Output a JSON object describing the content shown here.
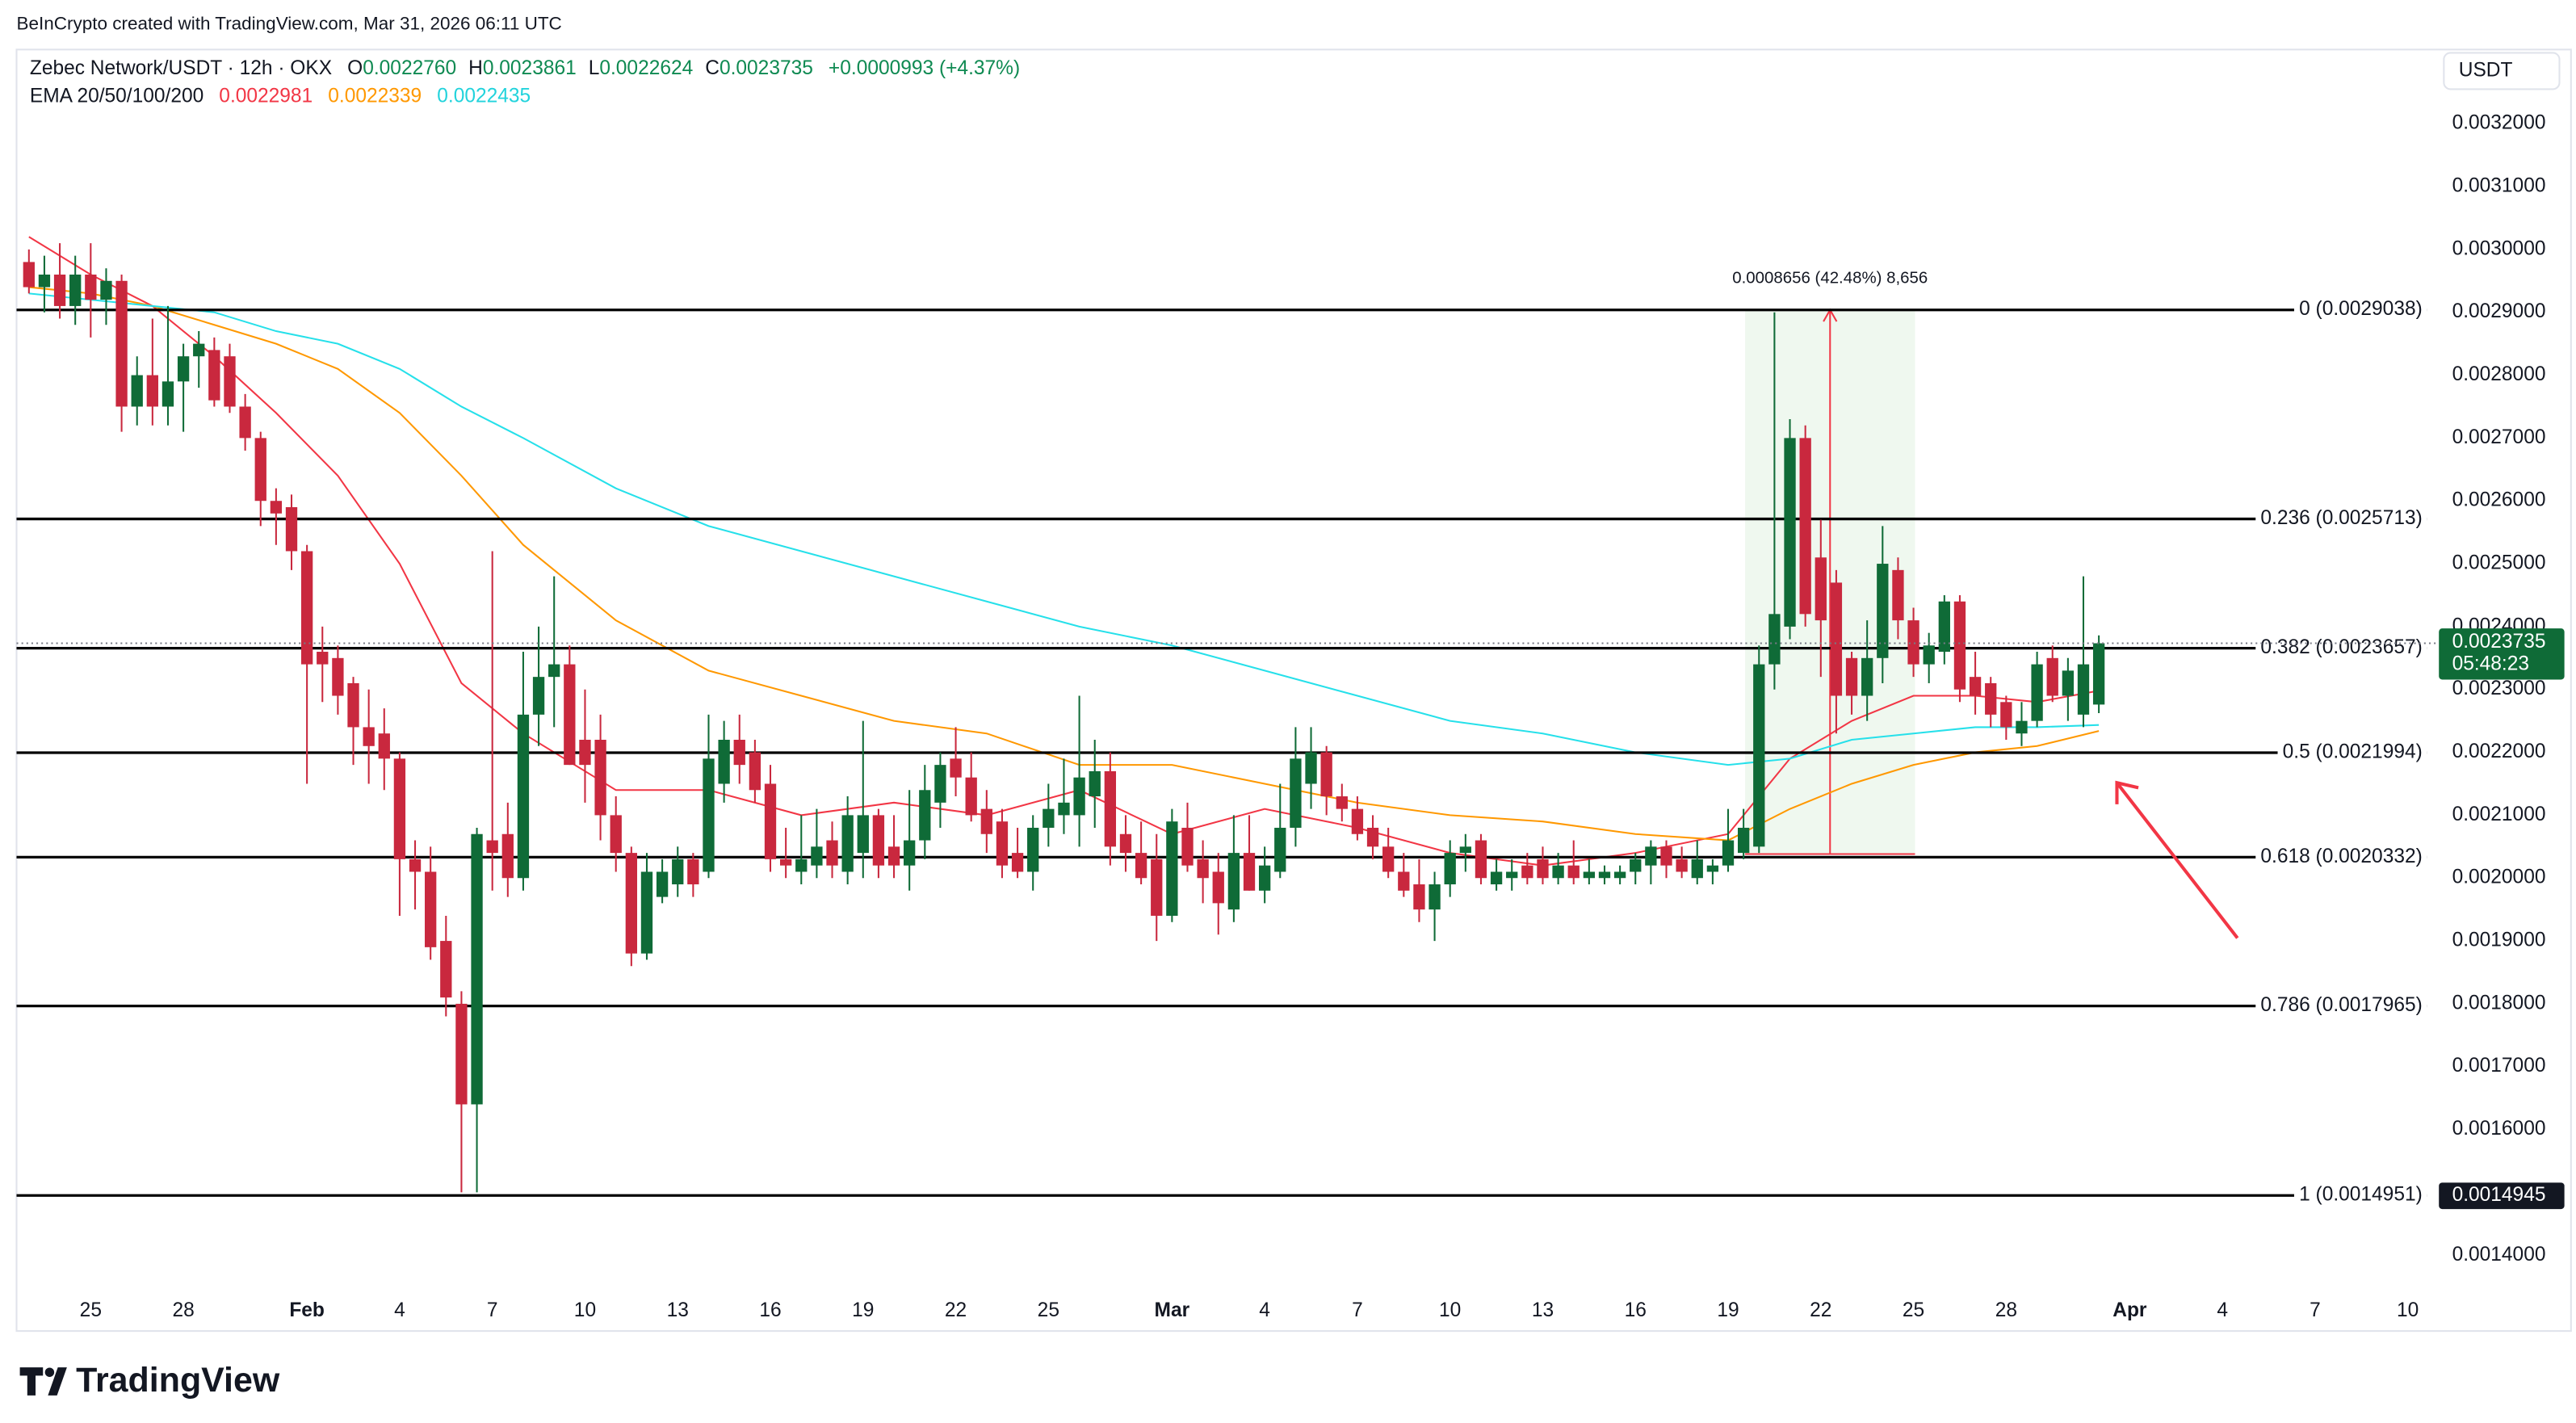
{
  "header": {
    "credit": "BeInCrypto created with TradingView.com, Mar 31, 2026 06:11 UTC",
    "symbol": "Zebec Network/USDT · 12h · OKX",
    "ohlc": [
      {
        "label": "O",
        "value": "0.0022760"
      },
      {
        "label": "H",
        "value": "0.0023861"
      },
      {
        "label": "L",
        "value": "0.0022624"
      },
      {
        "label": "C",
        "value": "0.0023735"
      }
    ],
    "change": "+0.0000993 (+4.37%)",
    "indicator": "EMA 20/50/100/200",
    "currency": "USDT",
    "countdown": "05:48:23",
    "brand": "TradingView"
  },
  "chart_data": {
    "type": "candlestick",
    "grid": false,
    "xlim": [
      22.6,
      100.9
    ],
    "xticks": [
      25,
      28,
      {
        "value": 32,
        "label": "Feb"
      },
      {
        "value": 35,
        "label": "4"
      },
      {
        "value": 38,
        "label": "7"
      },
      {
        "value": 41,
        "label": "10"
      },
      {
        "value": 44,
        "label": "13"
      },
      {
        "value": 47,
        "label": "16"
      },
      {
        "value": 50,
        "label": "19"
      },
      {
        "value": 53,
        "label": "22"
      },
      {
        "value": 56,
        "label": "25"
      },
      {
        "value": 60,
        "label": "Mar"
      },
      {
        "value": 63,
        "label": "4"
      },
      {
        "value": 66,
        "label": "7"
      },
      {
        "value": 69,
        "label": "10"
      },
      {
        "value": 72,
        "label": "13"
      },
      {
        "value": 75,
        "label": "16"
      },
      {
        "value": 78,
        "label": "19"
      },
      {
        "value": 81,
        "label": "22"
      },
      {
        "value": 84,
        "label": "25"
      },
      {
        "value": 87,
        "label": "28"
      },
      {
        "value": 91,
        "label": "Apr"
      },
      {
        "value": 94,
        "label": "4"
      },
      {
        "value": 97,
        "label": "7"
      },
      {
        "value": 100,
        "label": "10"
      }
    ],
    "ylim": [
      0.001353,
      0.003318
    ],
    "yticks": [
      {
        "value": 0.0014,
        "label": "0.0014000"
      },
      {
        "value": 0.0015,
        "label": "0.0015000"
      },
      {
        "value": 0.0016,
        "label": "0.0016000"
      },
      {
        "value": 0.0017,
        "label": "0.0017000"
      },
      {
        "value": 0.0018,
        "label": "0.0018000"
      },
      {
        "value": 0.0019,
        "label": "0.0019000"
      },
      {
        "value": 0.002,
        "label": "0.0020000"
      },
      {
        "value": 0.0021,
        "label": "0.0021000"
      },
      {
        "value": 0.0022,
        "label": "0.0022000"
      },
      {
        "value": 0.0023,
        "label": "0.0023000"
      },
      {
        "value": 0.0024,
        "label": "0.0024000"
      },
      {
        "value": 0.0025,
        "label": "0.0025000"
      },
      {
        "value": 0.0026,
        "label": "0.0026000"
      },
      {
        "value": 0.0027,
        "label": "0.0027000"
      },
      {
        "value": 0.0028,
        "label": "0.0028000"
      },
      {
        "value": 0.0029,
        "label": "0.0029000"
      },
      {
        "value": 0.003,
        "label": "0.0030000"
      },
      {
        "value": 0.0031,
        "label": "0.0031000"
      },
      {
        "value": 0.0032,
        "label": "0.0032000"
      }
    ],
    "up_color": "#0f6b37",
    "down_color": "#c9283e",
    "x": [
      23,
      23.5,
      24,
      24.5,
      25,
      25.5,
      26,
      26.5,
      27,
      27.5,
      28,
      28.5,
      29,
      29.5,
      30,
      30.5,
      31,
      31.5,
      32,
      32.5,
      33,
      33.5,
      34,
      34.5,
      35,
      35.5,
      36,
      36.5,
      37,
      37.5,
      38,
      38.5,
      39,
      39.5,
      40,
      40.5,
      41,
      41.5,
      42,
      42.5,
      43,
      43.5,
      44,
      44.5,
      45,
      45.5,
      46,
      46.5,
      47,
      47.5,
      48,
      48.5,
      49,
      49.5,
      50,
      50.5,
      51,
      51.5,
      52,
      52.5,
      53,
      53.5,
      54,
      54.5,
      55,
      55.5,
      56,
      56.5,
      57,
      57.5,
      58,
      58.5,
      59,
      59.5,
      60,
      60.5,
      61,
      61.5,
      62,
      62.5,
      63,
      63.5,
      64,
      64.5,
      65,
      65.5,
      66,
      66.5,
      67,
      67.5,
      68,
      68.5,
      69,
      69.5,
      70,
      70.5,
      71,
      71.5,
      72,
      72.5,
      73,
      73.5,
      74,
      74.5,
      75,
      75.5,
      76,
      76.5,
      77,
      77.5,
      78,
      78.5,
      79,
      79.5,
      80,
      80.5,
      81,
      81.5,
      82,
      82.5,
      83,
      83.5,
      84,
      84.5,
      85,
      85.5,
      86,
      86.5,
      87,
      87.5,
      88,
      88.5,
      89,
      89.5,
      90
    ],
    "open": [
      0.00298,
      0.00294,
      0.00296,
      0.00291,
      0.00296,
      0.00292,
      0.00295,
      0.00275,
      0.0028,
      0.00275,
      0.00279,
      0.00283,
      0.00284,
      0.00283,
      0.00275,
      0.0027,
      0.0026,
      0.00259,
      0.00252,
      0.00236,
      0.00235,
      0.00231,
      0.00224,
      0.00223,
      0.00219,
      0.00203,
      0.00201,
      0.0019,
      0.0018,
      0.00164,
      0.00206,
      0.00207,
      0.002,
      0.00226,
      0.00232,
      0.00234,
      0.00222,
      0.00222,
      0.0021,
      0.00204,
      0.00188,
      0.00197,
      0.00199,
      0.00203,
      0.00201,
      0.00215,
      0.00222,
      0.0022,
      0.00215,
      0.00203,
      0.00201,
      0.00202,
      0.00206,
      0.00201,
      0.00204,
      0.0021,
      0.00205,
      0.00202,
      0.00206,
      0.00212,
      0.00219,
      0.00216,
      0.00211,
      0.00209,
      0.00204,
      0.00201,
      0.00208,
      0.0021,
      0.0021,
      0.00213,
      0.00217,
      0.00207,
      0.00204,
      0.00203,
      0.00194,
      0.00208,
      0.00203,
      0.00201,
      0.00195,
      0.00204,
      0.00198,
      0.00201,
      0.00208,
      0.00215,
      0.0022,
      0.00213,
      0.00211,
      0.00208,
      0.00205,
      0.00201,
      0.00199,
      0.00195,
      0.00199,
      0.00204,
      0.00206,
      0.00199,
      0.002,
      0.00202,
      0.00203,
      0.002,
      0.00202,
      0.002,
      0.002,
      0.002,
      0.00201,
      0.00202,
      0.00205,
      0.00203,
      0.002,
      0.00201,
      0.00202,
      0.00204,
      0.00205,
      0.00234,
      0.0024,
      0.0027,
      0.00251,
      0.00247,
      0.00235,
      0.00229,
      0.00235,
      0.00249,
      0.00241,
      0.00234,
      0.00236,
      0.00244,
      0.00232,
      0.00231,
      0.00228,
      0.00223,
      0.00225,
      0.00235,
      0.00229,
      0.00226,
      0.002276
    ],
    "high": [
      0.003,
      0.00299,
      0.00301,
      0.00299,
      0.00301,
      0.00297,
      0.00296,
      0.00283,
      0.00289,
      0.00291,
      0.00285,
      0.00287,
      0.00286,
      0.00285,
      0.00277,
      0.00271,
      0.00262,
      0.00261,
      0.00253,
      0.0024,
      0.00237,
      0.00232,
      0.0023,
      0.00227,
      0.0022,
      0.00206,
      0.00205,
      0.00194,
      0.00182,
      0.00208,
      0.00252,
      0.00212,
      0.00236,
      0.0024,
      0.00248,
      0.00237,
      0.0023,
      0.00226,
      0.00213,
      0.00205,
      0.00204,
      0.00203,
      0.00205,
      0.00204,
      0.00226,
      0.00225,
      0.00226,
      0.00222,
      0.00218,
      0.00208,
      0.0021,
      0.00211,
      0.00209,
      0.00213,
      0.00225,
      0.00211,
      0.0021,
      0.00214,
      0.00218,
      0.0022,
      0.00224,
      0.0022,
      0.00214,
      0.00211,
      0.00208,
      0.0021,
      0.00215,
      0.00219,
      0.00229,
      0.00222,
      0.0022,
      0.0021,
      0.00209,
      0.00207,
      0.00211,
      0.00212,
      0.00206,
      0.00204,
      0.0021,
      0.0021,
      0.00205,
      0.00215,
      0.00224,
      0.00224,
      0.00221,
      0.00215,
      0.00213,
      0.0021,
      0.00208,
      0.00204,
      0.00203,
      0.00201,
      0.00206,
      0.00207,
      0.00207,
      0.00203,
      0.00203,
      0.00204,
      0.00205,
      0.00204,
      0.00206,
      0.00203,
      0.00202,
      0.00202,
      0.00204,
      0.00206,
      0.00206,
      0.00205,
      0.00206,
      0.00203,
      0.00211,
      0.00211,
      0.00237,
      0.0029,
      0.00273,
      0.00272,
      0.00257,
      0.00249,
      0.00236,
      0.00241,
      0.00256,
      0.00251,
      0.00243,
      0.00239,
      0.00245,
      0.00245,
      0.00236,
      0.00232,
      0.00229,
      0.00228,
      0.00236,
      0.00237,
      0.00235,
      0.00248,
      0.0023861
    ],
    "low": [
      0.00293,
      0.0029,
      0.00289,
      0.00288,
      0.00286,
      0.00288,
      0.00271,
      0.00272,
      0.00272,
      0.00272,
      0.00271,
      0.00278,
      0.00275,
      0.00274,
      0.00268,
      0.00256,
      0.00253,
      0.00249,
      0.00215,
      0.00228,
      0.00226,
      0.00218,
      0.00215,
      0.00214,
      0.00194,
      0.00195,
      0.00187,
      0.00178,
      0.0015,
      0.0015,
      0.00198,
      0.00197,
      0.00198,
      0.00221,
      0.00224,
      0.00218,
      0.00212,
      0.00206,
      0.00201,
      0.00186,
      0.00187,
      0.00196,
      0.00197,
      0.00197,
      0.002,
      0.00212,
      0.00215,
      0.00212,
      0.00201,
      0.002,
      0.00199,
      0.002,
      0.002,
      0.00199,
      0.002,
      0.002,
      0.002,
      0.00198,
      0.00203,
      0.00208,
      0.00213,
      0.00209,
      0.00204,
      0.002,
      0.002,
      0.00198,
      0.00205,
      0.00207,
      0.00205,
      0.00208,
      0.00202,
      0.00201,
      0.00199,
      0.0019,
      0.00193,
      0.00201,
      0.00196,
      0.00191,
      0.00193,
      0.00198,
      0.00196,
      0.002,
      0.00205,
      0.00211,
      0.0021,
      0.00209,
      0.00206,
      0.00203,
      0.002,
      0.00197,
      0.00193,
      0.0019,
      0.00197,
      0.00201,
      0.00199,
      0.00198,
      0.00198,
      0.00199,
      0.00199,
      0.00199,
      0.00199,
      0.00199,
      0.00199,
      0.00199,
      0.00199,
      0.00199,
      0.002,
      0.002,
      0.00199,
      0.00199,
      0.00201,
      0.00203,
      0.00204,
      0.0023,
      0.00238,
      0.0024,
      0.00232,
      0.00223,
      0.00226,
      0.00225,
      0.00231,
      0.00238,
      0.00232,
      0.00231,
      0.00234,
      0.00228,
      0.00226,
      0.00224,
      0.00222,
      0.00221,
      0.00224,
      0.00228,
      0.00225,
      0.00224,
      0.0022624
    ],
    "close": [
      0.00294,
      0.00296,
      0.00291,
      0.00296,
      0.00292,
      0.00295,
      0.00275,
      0.0028,
      0.00275,
      0.00279,
      0.00283,
      0.00285,
      0.00276,
      0.00275,
      0.0027,
      0.0026,
      0.00258,
      0.00252,
      0.00234,
      0.00234,
      0.00229,
      0.00224,
      0.00221,
      0.00219,
      0.00203,
      0.00201,
      0.00189,
      0.00181,
      0.00164,
      0.00207,
      0.00204,
      0.002,
      0.00226,
      0.00232,
      0.00234,
      0.00218,
      0.00218,
      0.0021,
      0.00204,
      0.00188,
      0.00201,
      0.00201,
      0.00203,
      0.00199,
      0.00219,
      0.00222,
      0.00218,
      0.00214,
      0.00203,
      0.00202,
      0.00203,
      0.00205,
      0.00202,
      0.0021,
      0.0021,
      0.00202,
      0.00202,
      0.00206,
      0.00214,
      0.00218,
      0.00216,
      0.0021,
      0.00207,
      0.00202,
      0.00201,
      0.00208,
      0.00211,
      0.00212,
      0.00216,
      0.00217,
      0.00205,
      0.00204,
      0.002,
      0.00194,
      0.00209,
      0.00202,
      0.002,
      0.00196,
      0.00204,
      0.00198,
      0.00202,
      0.00208,
      0.00219,
      0.0022,
      0.00213,
      0.00211,
      0.00207,
      0.00205,
      0.00201,
      0.00198,
      0.00195,
      0.00199,
      0.00204,
      0.00205,
      0.002,
      0.00201,
      0.00201,
      0.002,
      0.002,
      0.00202,
      0.002,
      0.00201,
      0.00201,
      0.00201,
      0.00203,
      0.00205,
      0.00202,
      0.00201,
      0.00203,
      0.00202,
      0.00206,
      0.00208,
      0.00234,
      0.00242,
      0.0027,
      0.00242,
      0.00241,
      0.00229,
      0.00229,
      0.00235,
      0.0025,
      0.00241,
      0.00234,
      0.00237,
      0.00244,
      0.0023,
      0.00229,
      0.00226,
      0.00224,
      0.00225,
      0.00234,
      0.00229,
      0.00233,
      0.00234,
      0.0023735
    ],
    "series": [
      {
        "color": "#f23645",
        "x": [
          23,
          25,
          27,
          29,
          31,
          33,
          35,
          37,
          39,
          42,
          45,
          48,
          51,
          54,
          57,
          60,
          63,
          66,
          69,
          72,
          75,
          78,
          80,
          82,
          84,
          86,
          88,
          90
        ],
        "values": [
          0.00302,
          0.00296,
          0.00291,
          0.00283,
          0.00274,
          0.00264,
          0.0025,
          0.00231,
          0.00223,
          0.00214,
          0.00214,
          0.0021,
          0.00212,
          0.0021,
          0.00214,
          0.00207,
          0.00211,
          0.00208,
          0.00204,
          0.00202,
          0.00204,
          0.00207,
          0.00219,
          0.00225,
          0.00229,
          0.00229,
          0.00228,
          0.0022981
        ]
      },
      {
        "color": "#ff9800",
        "x": [
          23,
          25,
          27,
          29,
          31,
          33,
          35,
          37,
          39,
          42,
          45,
          48,
          51,
          54,
          57,
          60,
          63,
          66,
          69,
          72,
          75,
          78,
          80,
          82,
          84,
          86,
          88,
          90
        ],
        "values": [
          0.00294,
          0.00293,
          0.00291,
          0.00288,
          0.00285,
          0.00281,
          0.00274,
          0.00264,
          0.00253,
          0.00241,
          0.00233,
          0.00229,
          0.00225,
          0.00223,
          0.00218,
          0.00218,
          0.00215,
          0.00212,
          0.0021,
          0.00209,
          0.00207,
          0.00206,
          0.00211,
          0.00215,
          0.00218,
          0.0022,
          0.00221,
          0.0022339
        ]
      },
      {
        "color": "#26e0ea",
        "x": [
          23,
          25,
          27,
          29,
          31,
          33,
          35,
          37,
          39,
          42,
          45,
          48,
          51,
          54,
          57,
          60,
          63,
          66,
          69,
          72,
          75,
          78,
          80,
          82,
          84,
          86,
          88,
          90
        ],
        "values": [
          0.00293,
          0.00292,
          0.00291,
          0.0029,
          0.00287,
          0.00285,
          0.00281,
          0.00275,
          0.0027,
          0.00262,
          0.00256,
          0.00252,
          0.00248,
          0.00244,
          0.0024,
          0.00237,
          0.00233,
          0.00229,
          0.00225,
          0.00223,
          0.0022,
          0.00218,
          0.00219,
          0.00222,
          0.00223,
          0.00224,
          0.00224,
          0.0022435
        ]
      }
    ],
    "levels": [
      {
        "value": 0.0029038,
        "label": "0 (0.0029038)"
      },
      {
        "value": 0.0025713,
        "label": "0.236 (0.0025713)"
      },
      {
        "value": 0.0023657,
        "label": "0.382 (0.0023657)"
      },
      {
        "value": 0.0021994,
        "label": "0.5 (0.0021994)"
      },
      {
        "value": 0.0020332,
        "label": "0.618 (0.0020332)"
      },
      {
        "value": 0.0017965,
        "label": "0.786 (0.0017965)"
      },
      {
        "value": 0.0014951,
        "label": "1 (0.0014951)"
      }
    ],
    "low_price_tag": 0.0014945,
    "measure": {
      "label": "0.0008656 (42.48%) 8,656",
      "x": [
        78.55,
        84.05
      ],
      "y": [
        0.0020382,
        0.0029038
      ]
    }
  }
}
